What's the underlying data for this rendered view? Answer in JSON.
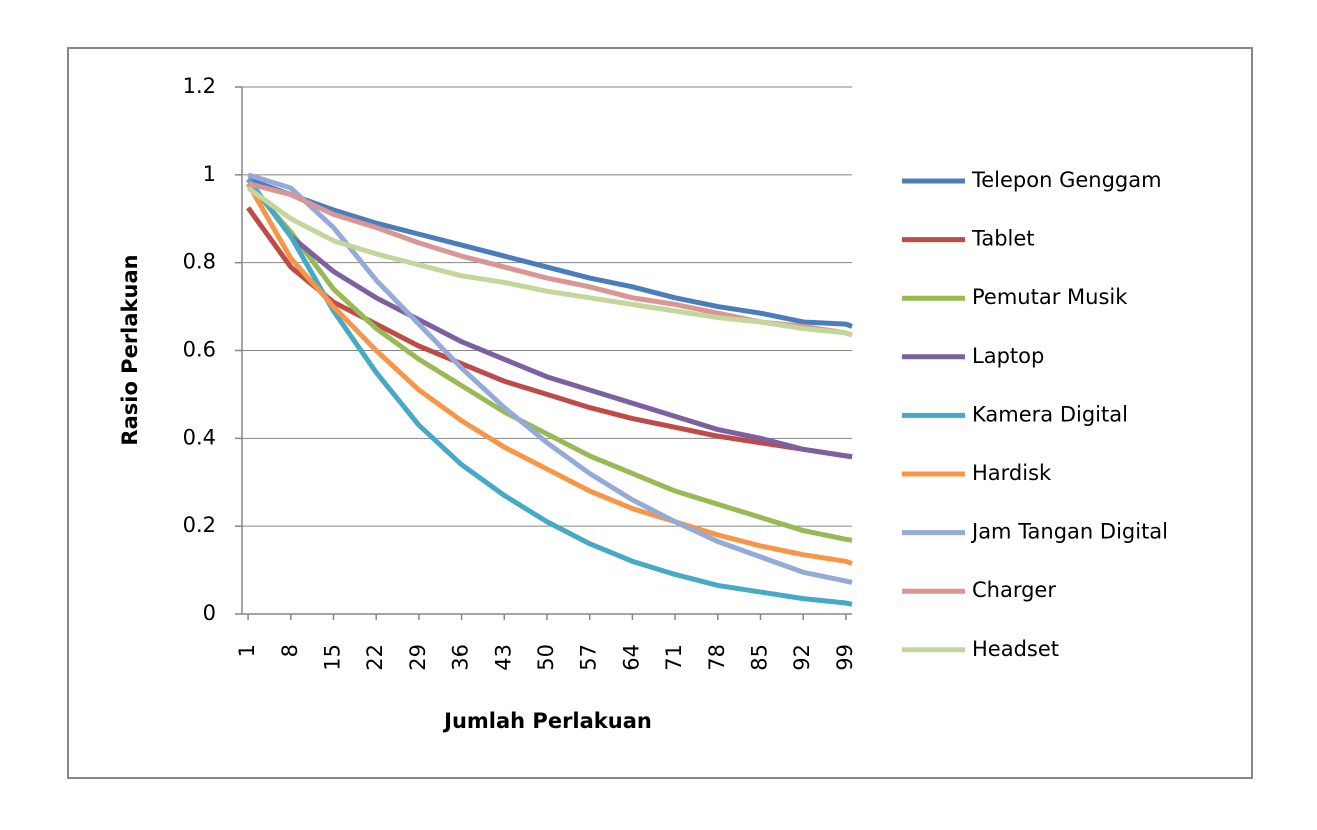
{
  "chart_data": {
    "type": "line",
    "x_label": "Jumlah Perlakuan",
    "y_label": "Rasio Perlakuan",
    "x": [
      1,
      8,
      15,
      22,
      29,
      36,
      43,
      50,
      57,
      64,
      71,
      78,
      85,
      92,
      99,
      100
    ],
    "xlim": [
      0,
      100
    ],
    "xticks": [
      1,
      8,
      15,
      22,
      29,
      36,
      43,
      50,
      57,
      64,
      71,
      78,
      85,
      92,
      99
    ],
    "ylim": [
      0,
      1.2
    ],
    "yticks": [
      0,
      0.2,
      0.4,
      0.6,
      0.8,
      1,
      1.2
    ],
    "grid": true,
    "legend": "right",
    "series": [
      {
        "name": "Telepon Genggam",
        "color": "#4a7ebb",
        "values": [
          0.99,
          0.955,
          0.92,
          0.89,
          0.865,
          0.84,
          0.815,
          0.79,
          0.765,
          0.745,
          0.72,
          0.7,
          0.685,
          0.665,
          0.66,
          0.655
        ]
      },
      {
        "name": "Tablet",
        "color": "#be4b48",
        "values": [
          0.925,
          0.79,
          0.71,
          0.66,
          0.61,
          0.57,
          0.53,
          0.5,
          0.47,
          0.445,
          0.425,
          0.405,
          0.39,
          0.375,
          0.36,
          0.358
        ]
      },
      {
        "name": "Pemutar Musik",
        "color": "#98b954",
        "values": [
          0.98,
          0.87,
          0.74,
          0.65,
          0.58,
          0.52,
          0.46,
          0.41,
          0.36,
          0.32,
          0.28,
          0.25,
          0.22,
          0.19,
          0.17,
          0.168
        ]
      },
      {
        "name": "Laptop",
        "color": "#7d60a0",
        "values": [
          0.99,
          0.86,
          0.78,
          0.72,
          0.67,
          0.62,
          0.58,
          0.54,
          0.51,
          0.48,
          0.45,
          0.42,
          0.4,
          0.375,
          0.36,
          0.358
        ]
      },
      {
        "name": "Kamera Digital",
        "color": "#46aac5",
        "values": [
          0.99,
          0.86,
          0.69,
          0.55,
          0.43,
          0.34,
          0.27,
          0.21,
          0.16,
          0.12,
          0.09,
          0.065,
          0.05,
          0.035,
          0.025,
          0.022
        ]
      },
      {
        "name": "Hardisk",
        "color": "#f79646",
        "values": [
          0.98,
          0.81,
          0.7,
          0.6,
          0.51,
          0.44,
          0.38,
          0.33,
          0.28,
          0.24,
          0.21,
          0.18,
          0.155,
          0.135,
          0.12,
          0.115
        ]
      },
      {
        "name": "Jam Tangan Digital",
        "color": "#94aad8",
        "values": [
          1.0,
          0.97,
          0.88,
          0.76,
          0.66,
          0.56,
          0.47,
          0.39,
          0.32,
          0.26,
          0.21,
          0.165,
          0.13,
          0.095,
          0.075,
          0.072
        ]
      },
      {
        "name": "Charger",
        "color": "#d99694",
        "values": [
          0.98,
          0.955,
          0.91,
          0.88,
          0.845,
          0.815,
          0.79,
          0.765,
          0.745,
          0.72,
          0.705,
          0.685,
          0.665,
          0.655,
          0.64,
          0.635
        ]
      },
      {
        "name": "Headset",
        "color": "#c3d69b",
        "values": [
          0.97,
          0.9,
          0.85,
          0.82,
          0.795,
          0.77,
          0.755,
          0.735,
          0.72,
          0.705,
          0.69,
          0.675,
          0.665,
          0.65,
          0.64,
          0.635
        ]
      }
    ]
  }
}
